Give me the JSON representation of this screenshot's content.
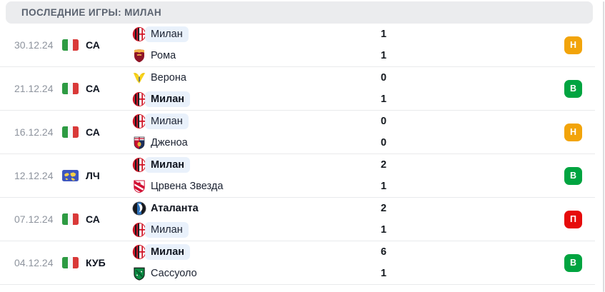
{
  "header": {
    "title": "ПОСЛЕДНИЕ ИГРЫ: МИЛАН"
  },
  "colors": {
    "win": "#00a440",
    "draw": "#f2a40a",
    "loss": "#e60b0b",
    "milan_highlight": "#e9f1fb"
  },
  "matches": [
    {
      "date": "30.12.24",
      "competition": "СА",
      "competition_flag": "italy-flag",
      "home": {
        "name": "Милан",
        "logo": "milan-logo",
        "bold": false,
        "highlighted": true
      },
      "away": {
        "name": "Рома",
        "logo": "roma-logo",
        "bold": false,
        "highlighted": false
      },
      "home_score": "1",
      "away_score": "1",
      "result": "Н",
      "result_type": "draw"
    },
    {
      "date": "21.12.24",
      "competition": "СА",
      "competition_flag": "italy-flag",
      "home": {
        "name": "Верона",
        "logo": "verona-logo",
        "bold": false,
        "highlighted": false
      },
      "away": {
        "name": "Милан",
        "logo": "milan-logo",
        "bold": true,
        "highlighted": true
      },
      "home_score": "0",
      "away_score": "1",
      "result": "В",
      "result_type": "win"
    },
    {
      "date": "16.12.24",
      "competition": "СА",
      "competition_flag": "italy-flag",
      "home": {
        "name": "Милан",
        "logo": "milan-logo",
        "bold": false,
        "highlighted": true
      },
      "away": {
        "name": "Дженоа",
        "logo": "genoa-logo",
        "bold": false,
        "highlighted": false
      },
      "home_score": "0",
      "away_score": "0",
      "result": "Н",
      "result_type": "draw"
    },
    {
      "date": "12.12.24",
      "competition": "ЛЧ",
      "competition_flag": "international-flag",
      "home": {
        "name": "Милан",
        "logo": "milan-logo",
        "bold": true,
        "highlighted": true
      },
      "away": {
        "name": "Црвена Звезда",
        "logo": "crvena-zvezda-logo",
        "bold": false,
        "highlighted": false
      },
      "home_score": "2",
      "away_score": "1",
      "result": "В",
      "result_type": "win"
    },
    {
      "date": "07.12.24",
      "competition": "СА",
      "competition_flag": "italy-flag",
      "home": {
        "name": "Аталанта",
        "logo": "atalanta-logo",
        "bold": true,
        "highlighted": false
      },
      "away": {
        "name": "Милан",
        "logo": "milan-logo",
        "bold": false,
        "highlighted": true
      },
      "home_score": "2",
      "away_score": "1",
      "result": "П",
      "result_type": "loss"
    },
    {
      "date": "04.12.24",
      "competition": "КУБ",
      "competition_flag": "italy-flag",
      "home": {
        "name": "Милан",
        "logo": "milan-logo",
        "bold": true,
        "highlighted": true
      },
      "away": {
        "name": "Сассуоло",
        "logo": "sassuolo-logo",
        "bold": false,
        "highlighted": false
      },
      "home_score": "6",
      "away_score": "1",
      "result": "В",
      "result_type": "win"
    }
  ]
}
